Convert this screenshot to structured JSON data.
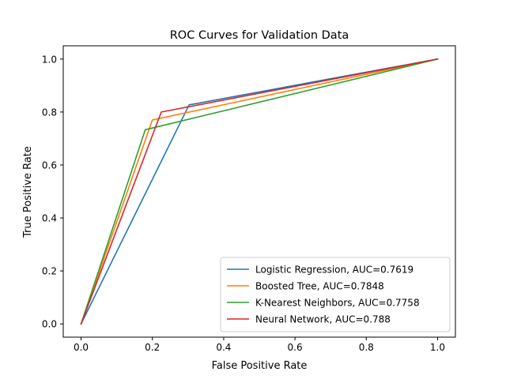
{
  "chart_data": {
    "type": "line",
    "title": "ROC Curves for Validation Data",
    "xlabel": "False Positive Rate",
    "ylabel": "True Positive Rate",
    "xlim": [
      -0.05,
      1.05
    ],
    "ylim": [
      -0.05,
      1.05
    ],
    "xticks": [
      0.0,
      0.2,
      0.4,
      0.6,
      0.8,
      1.0
    ],
    "xtick_labels": [
      "0.0",
      "0.2",
      "0.4",
      "0.6",
      "0.8",
      "1.0"
    ],
    "yticks": [
      0.0,
      0.2,
      0.4,
      0.6,
      0.8,
      1.0
    ],
    "ytick_labels": [
      "0.0",
      "0.2",
      "0.4",
      "0.6",
      "0.8",
      "1.0"
    ],
    "grid": false,
    "legend_position": "lower-right",
    "series": [
      {
        "name": "Logistic Regression, AUC=0.7619",
        "color": "#1f77b4",
        "x": [
          0.0,
          0.303,
          1.0
        ],
        "y": [
          0.0,
          0.827,
          1.0
        ]
      },
      {
        "name": "Boosted Tree, AUC=0.7848",
        "color": "#ff7f0e",
        "x": [
          0.0,
          0.2,
          1.0
        ],
        "y": [
          0.0,
          0.77,
          1.0
        ]
      },
      {
        "name": "K-Nearest Neighbors, AUC=0.7758",
        "color": "#2ca02c",
        "x": [
          0.0,
          0.18,
          1.0
        ],
        "y": [
          0.0,
          0.733,
          1.0
        ]
      },
      {
        "name": "Neural Network, AUC=0.788",
        "color": "#d62728",
        "x": [
          0.0,
          0.225,
          1.0
        ],
        "y": [
          0.0,
          0.8,
          1.0
        ]
      }
    ]
  }
}
